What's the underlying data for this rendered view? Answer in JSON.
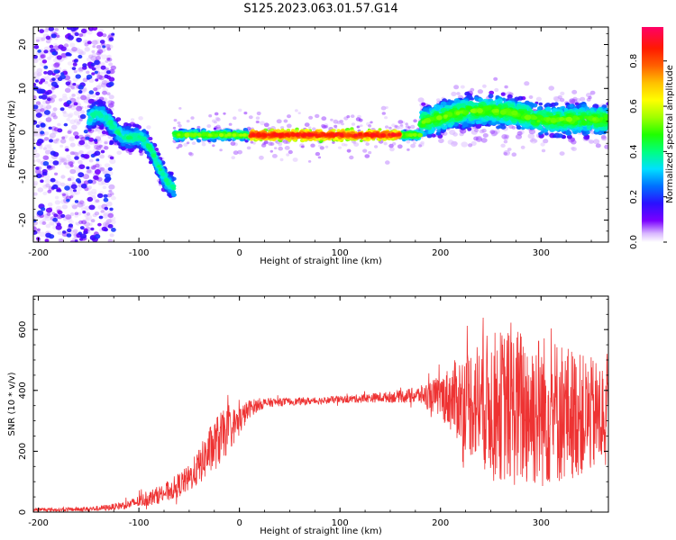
{
  "figure": {
    "title": "S125.2023.063.01.57.G14"
  },
  "chart_data": [
    {
      "type": "heatmap",
      "xlabel": "Height of straight line (km)",
      "ylabel": "Frequency (Hz)",
      "xlim": [
        -205,
        367
      ],
      "ylim": [
        -25,
        24
      ],
      "xticks": [
        -200,
        -100,
        0,
        100,
        200,
        300
      ],
      "yticks": [
        -20,
        -10,
        0,
        10,
        20
      ],
      "colorbar": {
        "label": "Normalized spectral amplitude",
        "range": [
          0,
          0.95
        ],
        "ticks": [
          0.0,
          0.2,
          0.4,
          0.6,
          0.8
        ],
        "colormap": "rainbow (purple to red)"
      },
      "features": [
        {
          "x_range": [
            -205,
            -125
          ],
          "description": "scattered low-amplitude noise over full frequency band"
        },
        {
          "x_range": [
            -150,
            -65
          ],
          "description": "arc descending from about +3 Hz to about -12 Hz"
        },
        {
          "x_range": [
            -65,
            180
          ],
          "description": "narrow band near 0 Hz, amplitude up to about 0.9"
        },
        {
          "x_range": [
            180,
            367
          ],
          "description": "broadened band 0 to +8 Hz with spread, amplitude 0.3-0.6"
        }
      ]
    },
    {
      "type": "line",
      "xlabel": "Height of straight line (km)",
      "ylabel": "SNR (10 * v/v)",
      "xlim": [
        -205,
        367
      ],
      "ylim": [
        0,
        710
      ],
      "xticks": [
        -200,
        -100,
        0,
        100,
        200,
        300
      ],
      "yticks": [
        0,
        200,
        400,
        600
      ],
      "color": "#ee3333",
      "series": [
        {
          "x": [
            -205,
            -180,
            -150,
            -130,
            -110,
            -90,
            -70,
            -50,
            -40,
            -30,
            -20,
            -10,
            0,
            10,
            20,
            30,
            50,
            70,
            100,
            130,
            160,
            180,
            200,
            220,
            240,
            260,
            280,
            300,
            320,
            340,
            367
          ],
          "values": [
            8,
            8,
            10,
            15,
            25,
            45,
            70,
            110,
            150,
            200,
            240,
            270,
            300,
            340,
            355,
            360,
            363,
            365,
            370,
            375,
            380,
            385,
            380,
            370,
            360,
            350,
            340,
            335,
            330,
            320,
            310
          ],
          "spread": [
            6,
            6,
            8,
            10,
            15,
            25,
            35,
            45,
            60,
            80,
            90,
            70,
            50,
            30,
            20,
            15,
            12,
            12,
            12,
            15,
            20,
            30,
            70,
            150,
            220,
            250,
            270,
            260,
            240,
            200,
            180
          ]
        }
      ]
    }
  ]
}
